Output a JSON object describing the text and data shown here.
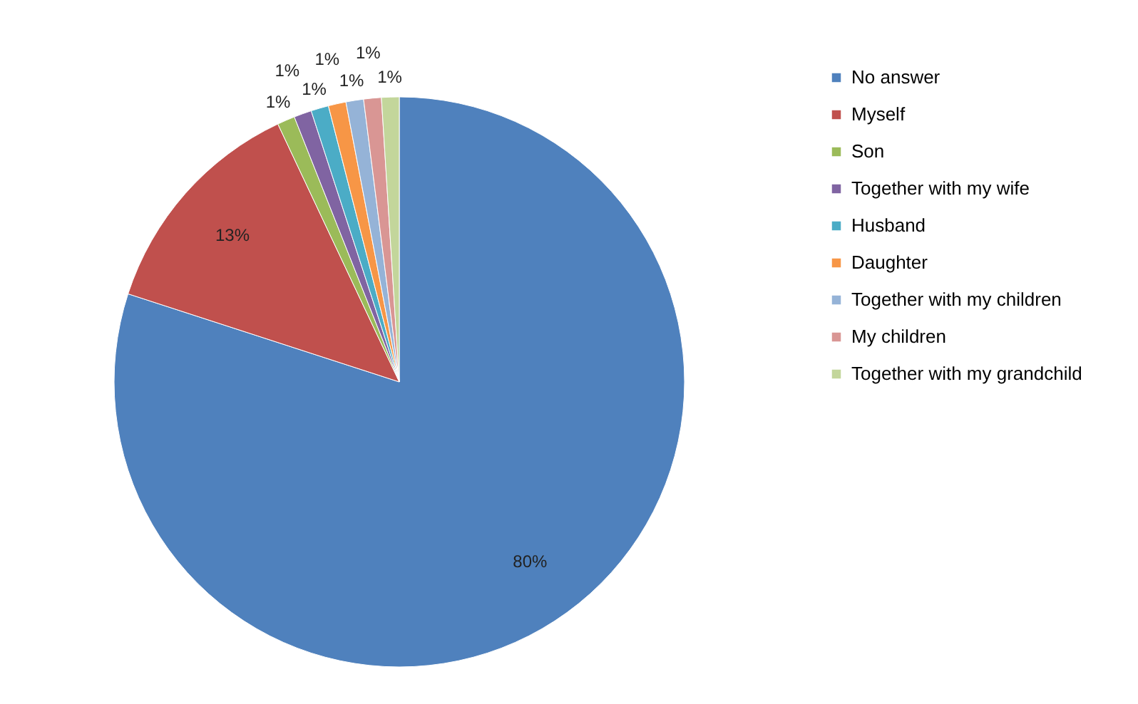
{
  "chart_data": {
    "type": "pie",
    "categories": [
      "No answer",
      "Myself",
      "Son",
      "Together with my wife",
      "Husband",
      "Daughter",
      "Together with my children",
      "My children",
      "Together with my grandchild"
    ],
    "values": [
      80,
      13,
      1,
      1,
      1,
      1,
      1,
      1,
      1
    ],
    "value_labels": [
      "80%",
      "13%",
      "1%",
      "1%",
      "1%",
      "1%",
      "1%",
      "1%",
      "1%"
    ],
    "colors": [
      "#4f81bd",
      "#c0504d",
      "#9bbb59",
      "#8064a2",
      "#4bacc6",
      "#f79646",
      "#95b3d7",
      "#d99694",
      "#c3d69b"
    ],
    "legend": "right"
  }
}
